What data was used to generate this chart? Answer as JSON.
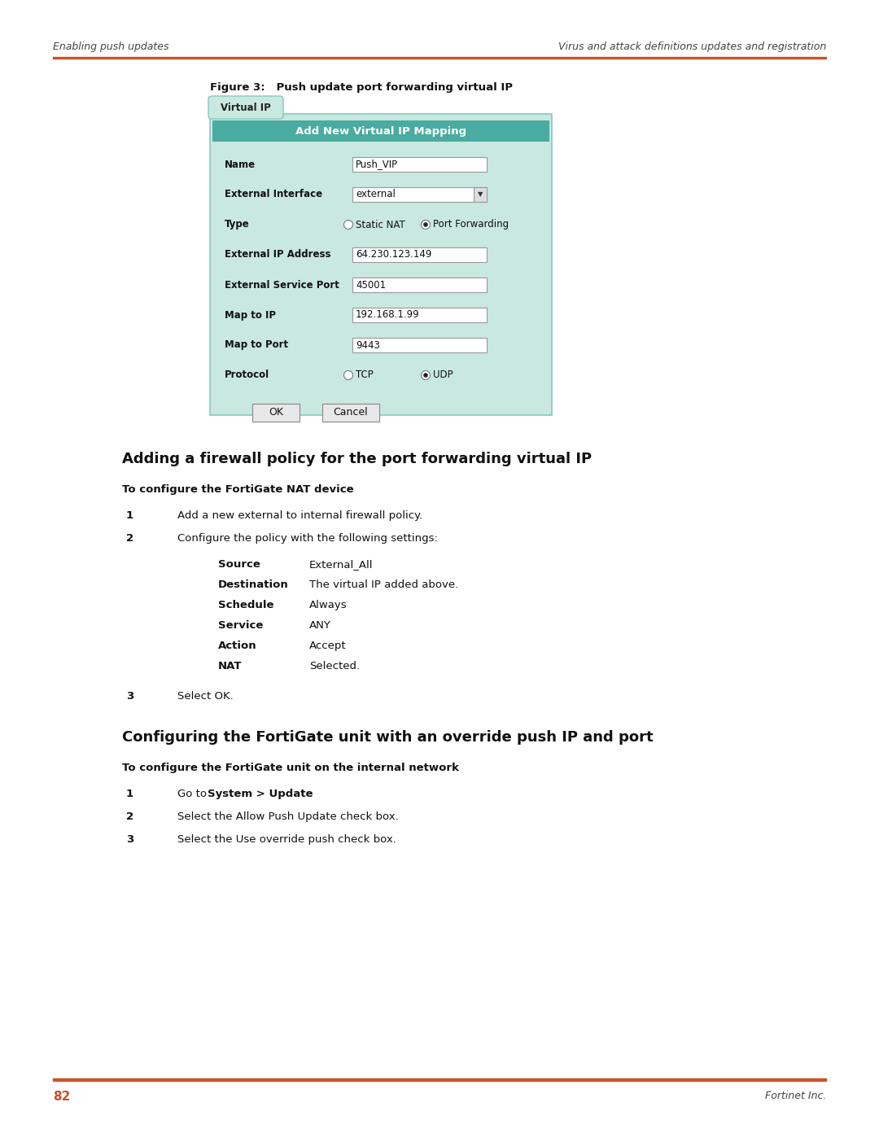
{
  "page_bg": "#ffffff",
  "orange_line_color": "#c8522a",
  "header_left": "Enabling push updates",
  "header_right": "Virus and attack definitions updates and registration",
  "header_text_color": "#444444",
  "figure_caption": "Figure 3:   Push update port forwarding virtual IP",
  "dialog_bg": "#c8e8e0",
  "dialog_title_bg": "#4aaba0",
  "dialog_title_text": "Add New Virtual IP Mapping",
  "dialog_title_color": "#ffffff",
  "dialog_border": "#88c8c0",
  "tab_text": "Virtual IP",
  "form_fields": [
    {
      "label": "Name",
      "value": "Push_VIP",
      "type": "text"
    },
    {
      "label": "External Interface",
      "value": "external",
      "type": "dropdown"
    },
    {
      "label": "Type",
      "value": "",
      "type": "radio",
      "options": [
        "Static NAT",
        "Port Forwarding"
      ],
      "selected": 1
    },
    {
      "label": "External IP Address",
      "value": "64.230.123.149",
      "type": "text"
    },
    {
      "label": "External Service Port",
      "value": "45001",
      "type": "text"
    },
    {
      "label": "Map to IP",
      "value": "192.168.1.99",
      "type": "text"
    },
    {
      "label": "Map to Port",
      "value": "9443",
      "type": "text"
    },
    {
      "label": "Protocol",
      "value": "",
      "type": "radio",
      "options": [
        "TCP",
        "UDP"
      ],
      "selected": 1
    }
  ],
  "section_heading": "Adding a firewall policy for the port forwarding virtual IP",
  "subheading": "To configure the FortiGate NAT device",
  "steps": [
    "Add a new external to internal firewall policy.",
    "Configure the policy with the following settings:"
  ],
  "table_rows": [
    {
      "key": "Source",
      "value": "External_All"
    },
    {
      "key": "Destination",
      "value": "The virtual IP added above."
    },
    {
      "key": "Schedule",
      "value": "Always"
    },
    {
      "key": "Service",
      "value": "ANY"
    },
    {
      "key": "Action",
      "value": "Accept"
    },
    {
      "key": "NAT",
      "value": "Selected."
    }
  ],
  "step3": "Select OK.",
  "section2_heading": "Configuring the FortiGate unit with an override push IP and port",
  "subheading2": "To configure the FortiGate unit on the internal network",
  "steps2_plain": [
    "Select the Allow Push Update check box.",
    "Select the Use override push check box."
  ],
  "footer_page": "82",
  "footer_company": "Fortinet Inc.",
  "footer_page_color": "#c8522a"
}
